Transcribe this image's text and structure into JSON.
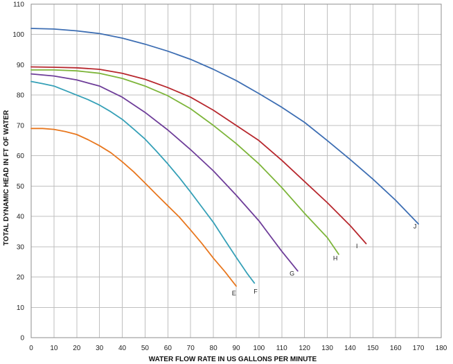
{
  "chart_data": {
    "type": "line",
    "title": "",
    "xlabel": "WATER FLOW RATE IN US GALLONS PER MINUTE",
    "ylabel": "TOTAL DYNAMIC HEAD IN FT OF WATER",
    "xlim": [
      0,
      180
    ],
    "ylim": [
      0,
      110
    ],
    "x_ticks": [
      0,
      10,
      20,
      30,
      40,
      50,
      60,
      70,
      80,
      90,
      100,
      110,
      120,
      130,
      140,
      150,
      160,
      170,
      180
    ],
    "y_ticks": [
      0,
      10,
      20,
      30,
      40,
      50,
      60,
      70,
      80,
      90,
      100,
      110
    ],
    "grid": true,
    "legend": "none",
    "series": [
      {
        "name": "E",
        "color": "#e8771e",
        "points": [
          [
            0,
            69
          ],
          [
            5,
            69
          ],
          [
            10,
            68.7
          ],
          [
            15,
            68
          ],
          [
            20,
            67
          ],
          [
            25,
            65.3
          ],
          [
            30,
            63.3
          ],
          [
            35,
            61
          ],
          [
            40,
            58
          ],
          [
            45,
            54.7
          ],
          [
            50,
            51
          ],
          [
            55,
            47.2
          ],
          [
            60,
            43.5
          ],
          [
            65,
            39.8
          ],
          [
            70,
            35.5
          ],
          [
            75,
            31
          ],
          [
            80,
            26.2
          ],
          [
            85,
            21.8
          ],
          [
            90,
            17
          ]
        ]
      },
      {
        "name": "F",
        "color": "#35a0b7",
        "points": [
          [
            0,
            84.5
          ],
          [
            5,
            83.8
          ],
          [
            10,
            83
          ],
          [
            15,
            81.5
          ],
          [
            20,
            80
          ],
          [
            25,
            78.5
          ],
          [
            30,
            76.7
          ],
          [
            35,
            74.5
          ],
          [
            40,
            72
          ],
          [
            45,
            68.8
          ],
          [
            50,
            65.5
          ],
          [
            55,
            61.5
          ],
          [
            60,
            57.3
          ],
          [
            65,
            52.8
          ],
          [
            70,
            48
          ],
          [
            75,
            43
          ],
          [
            80,
            38
          ],
          [
            85,
            32.2
          ],
          [
            90,
            26.5
          ],
          [
            95,
            21
          ],
          [
            98,
            18
          ]
        ]
      },
      {
        "name": "G",
        "color": "#6e3d99",
        "points": [
          [
            0,
            87
          ],
          [
            10,
            86.3
          ],
          [
            20,
            85
          ],
          [
            30,
            83
          ],
          [
            40,
            79.3
          ],
          [
            50,
            74.3
          ],
          [
            60,
            68.5
          ],
          [
            70,
            62
          ],
          [
            80,
            55
          ],
          [
            90,
            47
          ],
          [
            100,
            38.5
          ],
          [
            105,
            33.5
          ],
          [
            110,
            28.5
          ],
          [
            117,
            22
          ]
        ]
      },
      {
        "name": "H",
        "color": "#7db53a",
        "points": [
          [
            0,
            88.3
          ],
          [
            10,
            88.3
          ],
          [
            20,
            88
          ],
          [
            30,
            87.2
          ],
          [
            40,
            85.5
          ],
          [
            50,
            83
          ],
          [
            60,
            79.8
          ],
          [
            70,
            75.5
          ],
          [
            80,
            70
          ],
          [
            90,
            64
          ],
          [
            100,
            57.3
          ],
          [
            110,
            49.5
          ],
          [
            120,
            41
          ],
          [
            130,
            33
          ],
          [
            135,
            27.5
          ]
        ]
      },
      {
        "name": "I",
        "color": "#b7272d",
        "points": [
          [
            0,
            89.3
          ],
          [
            10,
            89.2
          ],
          [
            20,
            89
          ],
          [
            30,
            88.5
          ],
          [
            40,
            87.2
          ],
          [
            50,
            85.2
          ],
          [
            60,
            82.5
          ],
          [
            70,
            79.3
          ],
          [
            80,
            75
          ],
          [
            90,
            70
          ],
          [
            100,
            65
          ],
          [
            110,
            58.5
          ],
          [
            120,
            51.5
          ],
          [
            130,
            44.5
          ],
          [
            140,
            37
          ],
          [
            147,
            31
          ]
        ]
      },
      {
        "name": "J",
        "color": "#3d6eb3",
        "points": [
          [
            0,
            102
          ],
          [
            10,
            101.8
          ],
          [
            20,
            101.2
          ],
          [
            30,
            100.3
          ],
          [
            40,
            98.8
          ],
          [
            50,
            96.8
          ],
          [
            60,
            94.5
          ],
          [
            70,
            91.8
          ],
          [
            80,
            88.5
          ],
          [
            90,
            84.8
          ],
          [
            100,
            80.5
          ],
          [
            110,
            76
          ],
          [
            120,
            71
          ],
          [
            130,
            65
          ],
          [
            140,
            58.8
          ],
          [
            150,
            52.3
          ],
          [
            160,
            45.3
          ],
          [
            170,
            37.5
          ]
        ]
      }
    ],
    "curve_labels": [
      {
        "text": "E",
        "x": 89,
        "y": 14
      },
      {
        "text": "F",
        "x": 98.5,
        "y": 14.5
      },
      {
        "text": "G",
        "x": 114.5,
        "y": 20.5
      },
      {
        "text": "H",
        "x": 133.5,
        "y": 25.5
      },
      {
        "text": "I",
        "x": 143,
        "y": 29.5
      },
      {
        "text": "J",
        "x": 168.5,
        "y": 36
      }
    ]
  }
}
